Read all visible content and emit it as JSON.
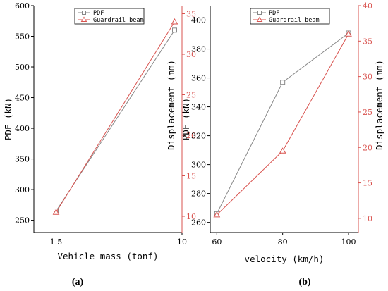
{
  "colors": {
    "pdf": "#888888",
    "beam": "#d9534f",
    "axis_left": "#000000",
    "axis_right": "#d9534f"
  },
  "markers": {
    "pdf": "square-marker",
    "beam": "triangle-marker"
  },
  "chart_data": [
    {
      "type": "line",
      "panel_label": "(a)",
      "xlabel": "Vehicle mass (tonf)",
      "ylabel": "PDF (kN)",
      "y2label": "Displacement (mm)",
      "x_ticks": [
        "1.5",
        "10"
      ],
      "xlim": [
        0,
        10
      ],
      "ylim": [
        230,
        600
      ],
      "y_ticks": [
        250,
        300,
        350,
        400,
        450,
        500,
        550,
        600
      ],
      "y2lim": [
        8,
        36
      ],
      "y2_ticks": [
        10,
        15,
        20,
        25,
        30,
        35
      ],
      "legend": {
        "position": "top-center",
        "entries": [
          "PDF",
          "Guardrail beam"
        ]
      },
      "grid": false,
      "series": [
        {
          "name": "PDF",
          "axis": "left",
          "x": [
            1.5,
            9.5
          ],
          "values": [
            265,
            560
          ]
        },
        {
          "name": "Guardrail beam",
          "axis": "right",
          "x": [
            1.5,
            9.5
          ],
          "values": [
            10.5,
            34
          ]
        }
      ]
    },
    {
      "type": "line",
      "panel_label": "(b)",
      "xlabel": "velocity (km/h)",
      "ylabel": "PDF (kN)",
      "y2label": "Displacement (mm)",
      "x_ticks": [
        "60",
        "80",
        "100"
      ],
      "xlim": [
        58,
        103
      ],
      "ylim": [
        253,
        410
      ],
      "y_ticks": [
        260,
        280,
        300,
        320,
        340,
        360,
        380,
        400
      ],
      "y2lim": [
        8,
        40
      ],
      "y2_ticks": [
        10,
        15,
        20,
        25,
        30,
        35,
        40
      ],
      "legend": {
        "position": "top-center",
        "entries": [
          "PDF",
          "Guardrail beam"
        ]
      },
      "grid": false,
      "series": [
        {
          "name": "PDF",
          "axis": "left",
          "x": [
            60,
            80,
            100
          ],
          "values": [
            266,
            357,
            391
          ]
        },
        {
          "name": "Guardrail beam",
          "axis": "right",
          "x": [
            60,
            80,
            100
          ],
          "values": [
            10.5,
            19.5,
            36
          ]
        }
      ]
    }
  ]
}
